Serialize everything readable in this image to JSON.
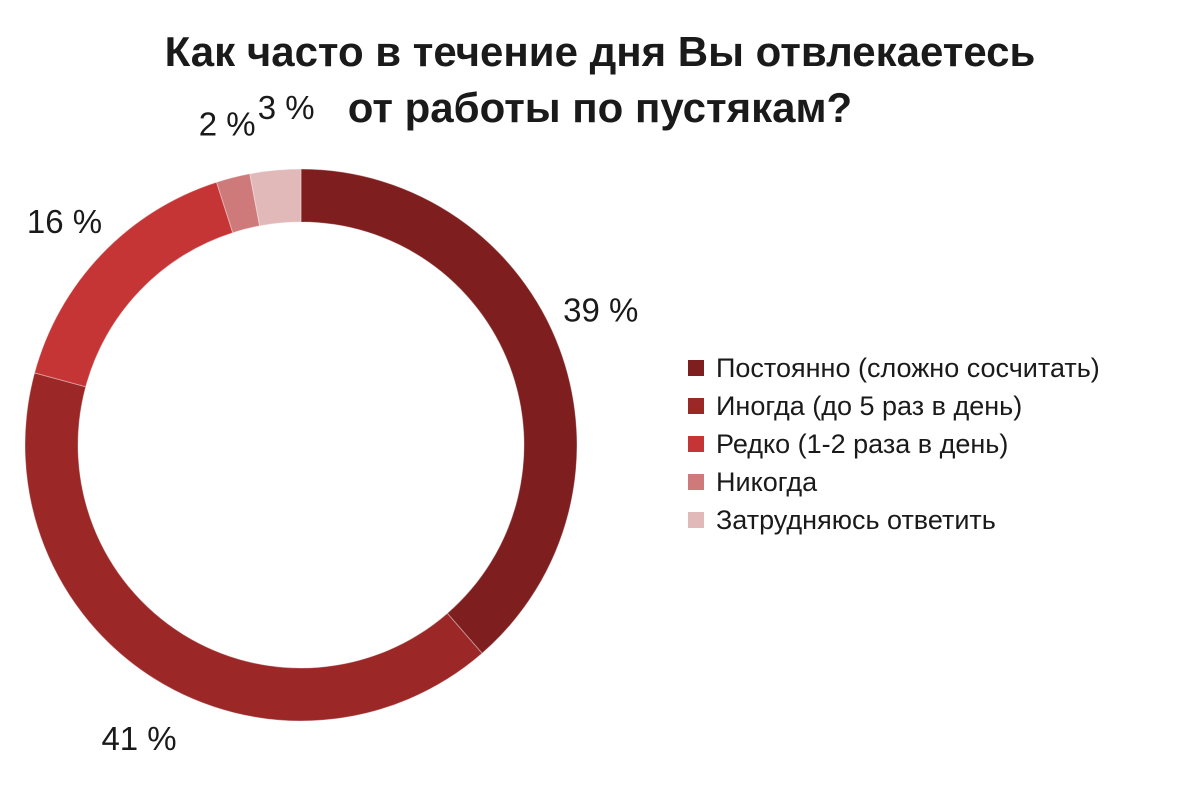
{
  "chart_data": {
    "type": "pie",
    "donut": true,
    "title_lines": [
      "Как часто в течение дня Вы отвлекаетесь",
      "от работы по пустякам?"
    ],
    "slices": [
      {
        "label": "Постоянно (сложно сосчитать)",
        "value": 39,
        "display": "39 %",
        "color": "#7e1e1e"
      },
      {
        "label": "Иногда (до 5 раз в день)",
        "value": 41,
        "display": "41 %",
        "color": "#9b2727"
      },
      {
        "label": "Редко (1-2 раза в день)",
        "value": 16,
        "display": "16 %",
        "color": "#c53535"
      },
      {
        "label": "Никогда",
        "value": 2,
        "display": "2 %",
        "color": "#cf7a7a"
      },
      {
        "label": "Затрудняюсь ответить",
        "value": 3,
        "display": "3 %",
        "color": "#e2b9b9"
      }
    ],
    "legend_position": "right"
  }
}
